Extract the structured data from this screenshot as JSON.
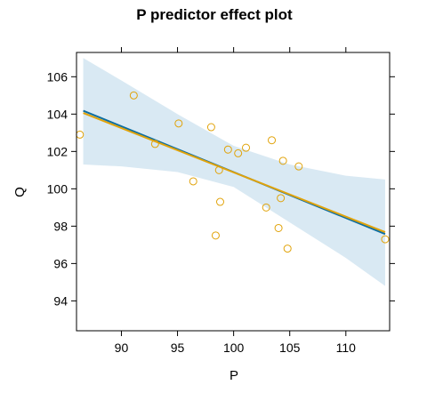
{
  "chart_data": {
    "type": "scatter",
    "title": "P predictor effect plot",
    "xlabel": "P",
    "ylabel": "Q",
    "xlim": [
      86.0,
      113.9
    ],
    "ylim": [
      92.4,
      107.3
    ],
    "xticks": [
      90,
      95,
      100,
      105,
      110
    ],
    "yticks": [
      94,
      96,
      98,
      100,
      102,
      104,
      106
    ],
    "grid": false,
    "series": [
      {
        "kind": "points",
        "color": "#e1a30a",
        "points": [
          {
            "x": 86.3,
            "y": 102.9
          },
          {
            "x": 91.1,
            "y": 105.0
          },
          {
            "x": 93.0,
            "y": 102.4
          },
          {
            "x": 95.1,
            "y": 103.5
          },
          {
            "x": 96.4,
            "y": 100.4
          },
          {
            "x": 98.0,
            "y": 103.3
          },
          {
            "x": 98.4,
            "y": 97.5
          },
          {
            "x": 98.7,
            "y": 101.0
          },
          {
            "x": 98.8,
            "y": 99.3
          },
          {
            "x": 99.5,
            "y": 102.1
          },
          {
            "x": 100.4,
            "y": 101.9
          },
          {
            "x": 101.1,
            "y": 102.2
          },
          {
            "x": 102.9,
            "y": 99.0
          },
          {
            "x": 103.4,
            "y": 102.6
          },
          {
            "x": 104.0,
            "y": 97.9
          },
          {
            "x": 104.2,
            "y": 99.5
          },
          {
            "x": 104.4,
            "y": 101.5
          },
          {
            "x": 104.8,
            "y": 96.8
          },
          {
            "x": 105.8,
            "y": 101.2
          },
          {
            "x": 113.5,
            "y": 97.3
          }
        ]
      },
      {
        "kind": "fit-line",
        "color": "#0e6ea0",
        "x": [
          86.6,
          113.5
        ],
        "y": [
          104.18,
          97.58
        ]
      },
      {
        "kind": "smooth-line",
        "color": "#e1a30a",
        "x": [
          86.6,
          113.5
        ],
        "y": [
          104.06,
          97.68
        ]
      }
    ],
    "confidence_band": {
      "color": "#d9e9f3",
      "x": [
        86.6,
        90,
        95,
        100,
        105,
        110,
        113.5
      ],
      "upper": [
        107.0,
        105.8,
        104.0,
        102.3,
        101.3,
        100.7,
        100.5
      ],
      "lower": [
        101.3,
        101.2,
        100.9,
        100.1,
        98.2,
        96.3,
        94.8
      ]
    }
  }
}
